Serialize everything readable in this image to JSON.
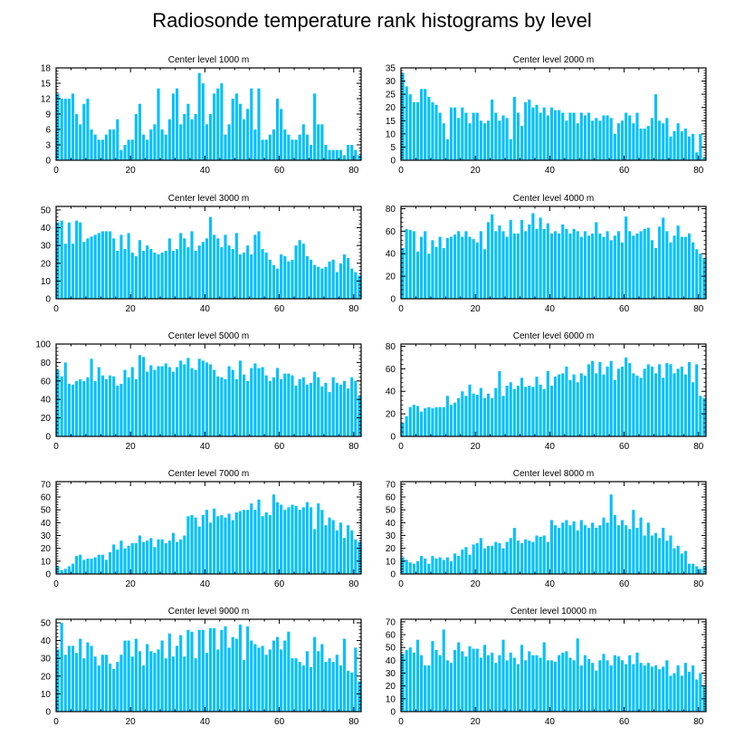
{
  "title": "Radiosonde temperature rank histograms by level",
  "colors": {
    "bar": "#00bfff",
    "axis": "#000000",
    "background": "#ffffff"
  },
  "chart_data": [
    {
      "type": "bar",
      "title": "Center level 1000 m",
      "xlabel": "",
      "ylabel": "",
      "xlim": [
        0,
        82
      ],
      "ylim": [
        0,
        18
      ],
      "xticks": [
        0,
        20,
        40,
        60,
        80
      ],
      "yticks": [
        0,
        3,
        6,
        9,
        12,
        15,
        18
      ],
      "values": [
        13,
        12,
        12,
        12,
        13,
        9,
        7,
        11,
        12,
        6,
        5,
        4,
        4,
        5,
        6,
        6,
        8,
        2,
        3,
        4,
        4,
        9,
        11,
        5,
        4,
        6,
        7,
        14,
        6,
        5,
        8,
        13,
        14,
        7,
        9,
        11,
        8,
        9,
        17,
        15,
        7,
        9,
        13,
        14,
        15,
        5,
        7,
        12,
        13,
        11,
        8,
        10,
        14,
        6,
        14,
        4,
        4,
        5,
        6,
        12,
        10,
        6,
        5,
        4,
        4,
        5,
        7,
        5,
        3,
        13,
        7,
        7,
        3,
        2,
        2,
        2,
        2,
        1,
        3,
        3,
        2,
        1
      ]
    },
    {
      "type": "bar",
      "title": "Center level 2000 m",
      "xlabel": "",
      "ylabel": "",
      "xlim": [
        0,
        82
      ],
      "ylim": [
        0,
        35
      ],
      "xticks": [
        0,
        20,
        40,
        60,
        80
      ],
      "yticks": [
        0,
        5,
        10,
        15,
        20,
        25,
        30,
        35
      ],
      "values": [
        33,
        28,
        25,
        22,
        22,
        27,
        27,
        24,
        22,
        21,
        18,
        14,
        8,
        20,
        20,
        16,
        20,
        18,
        14,
        18,
        18,
        15,
        14,
        15,
        23,
        18,
        15,
        17,
        16,
        8,
        24,
        18,
        13,
        22,
        23,
        20,
        21,
        18,
        20,
        17,
        20,
        19,
        19,
        18,
        15,
        18,
        18,
        14,
        18,
        17,
        18,
        15,
        16,
        15,
        17,
        17,
        16,
        10,
        14,
        15,
        18,
        17,
        14,
        18,
        12,
        12,
        13,
        16,
        25,
        15,
        14,
        16,
        9,
        11,
        14,
        11,
        12,
        9,
        10,
        3,
        10,
        1
      ]
    },
    {
      "type": "bar",
      "title": "Center level 3000 m",
      "xlabel": "",
      "ylabel": "",
      "xlim": [
        0,
        82
      ],
      "ylim": [
        0,
        52
      ],
      "xticks": [
        0,
        20,
        40,
        60,
        80
      ],
      "yticks": [
        0,
        10,
        20,
        30,
        40,
        50
      ],
      "values": [
        43,
        44,
        31,
        43,
        31,
        44,
        43,
        32,
        34,
        35,
        36,
        37,
        38,
        38,
        38,
        34,
        27,
        36,
        28,
        37,
        26,
        24,
        33,
        27,
        30,
        28,
        26,
        25,
        26,
        27,
        34,
        27,
        28,
        37,
        34,
        29,
        38,
        27,
        30,
        32,
        34,
        46,
        36,
        34,
        29,
        36,
        30,
        28,
        37,
        25,
        26,
        30,
        25,
        36,
        38,
        28,
        26,
        22,
        19,
        17,
        25,
        24,
        21,
        22,
        30,
        33,
        31,
        24,
        22,
        19,
        18,
        17,
        18,
        21,
        22,
        15,
        20,
        25,
        23,
        17,
        15,
        13
      ]
    },
    {
      "type": "bar",
      "title": "Center level 4000 m",
      "xlabel": "",
      "ylabel": "",
      "xlim": [
        0,
        82
      ],
      "ylim": [
        0,
        82
      ],
      "xticks": [
        0,
        20,
        40,
        60,
        80
      ],
      "yticks": [
        0,
        20,
        40,
        60,
        80
      ],
      "values": [
        45,
        62,
        61,
        60,
        42,
        55,
        60,
        40,
        52,
        46,
        55,
        45,
        54,
        55,
        57,
        60,
        55,
        60,
        55,
        53,
        50,
        60,
        44,
        68,
        75,
        60,
        65,
        60,
        55,
        70,
        58,
        58,
        70,
        60,
        66,
        76,
        62,
        72,
        62,
        67,
        58,
        60,
        58,
        66,
        62,
        58,
        62,
        60,
        55,
        60,
        56,
        58,
        68,
        58,
        55,
        60,
        52,
        56,
        60,
        50,
        73,
        60,
        56,
        58,
        60,
        62,
        63,
        52,
        45,
        64,
        72,
        60,
        50,
        56,
        65,
        55,
        55,
        58,
        50,
        44,
        40,
        36
      ]
    },
    {
      "type": "bar",
      "title": "Center level 5000 m",
      "xlabel": "",
      "ylabel": "",
      "xlim": [
        0,
        82
      ],
      "ylim": [
        0,
        100
      ],
      "xticks": [
        0,
        20,
        40,
        60,
        80
      ],
      "yticks": [
        0,
        20,
        40,
        60,
        80,
        100
      ],
      "values": [
        72,
        65,
        80,
        57,
        56,
        60,
        62,
        60,
        64,
        84,
        60,
        75,
        66,
        62,
        66,
        65,
        55,
        57,
        72,
        64,
        75,
        62,
        88,
        86,
        70,
        77,
        72,
        76,
        76,
        79,
        75,
        70,
        75,
        82,
        78,
        85,
        74,
        72,
        84,
        82,
        80,
        78,
        72,
        65,
        64,
        62,
        76,
        72,
        62,
        82,
        67,
        60,
        74,
        79,
        74,
        75,
        66,
        60,
        64,
        74,
        62,
        68,
        68,
        66,
        55,
        62,
        64,
        56,
        58,
        70,
        64,
        54,
        58,
        48,
        64,
        58,
        56,
        60,
        52,
        64,
        60,
        44
      ]
    },
    {
      "type": "bar",
      "title": "Center level 6000 m",
      "xlabel": "",
      "ylabel": "",
      "xlim": [
        0,
        82
      ],
      "ylim": [
        0,
        82
      ],
      "xticks": [
        0,
        20,
        40,
        60,
        80
      ],
      "yticks": [
        0,
        20,
        40,
        60,
        80
      ],
      "values": [
        12,
        18,
        26,
        28,
        27,
        22,
        25,
        26,
        25,
        26,
        26,
        26,
        36,
        28,
        30,
        34,
        40,
        36,
        46,
        38,
        37,
        43,
        34,
        38,
        34,
        43,
        58,
        36,
        45,
        48,
        42,
        45,
        52,
        44,
        45,
        44,
        53,
        46,
        42,
        58,
        45,
        53,
        55,
        56,
        62,
        50,
        55,
        48,
        56,
        54,
        64,
        67,
        56,
        66,
        55,
        62,
        67,
        50,
        60,
        62,
        70,
        65,
        56,
        54,
        52,
        60,
        64,
        62,
        56,
        64,
        52,
        65,
        64,
        56,
        60,
        62,
        55,
        66,
        48,
        64,
        36,
        34
      ]
    },
    {
      "type": "bar",
      "title": "Center level 7000 m",
      "xlabel": "",
      "ylabel": "",
      "xlim": [
        0,
        82
      ],
      "ylim": [
        0,
        72
      ],
      "xticks": [
        0,
        20,
        40,
        60,
        80
      ],
      "yticks": [
        0,
        10,
        20,
        30,
        40,
        50,
        60,
        70
      ],
      "values": [
        6,
        3,
        4,
        6,
        8,
        14,
        15,
        11,
        12,
        12,
        13,
        15,
        15,
        11,
        17,
        23,
        19,
        26,
        20,
        22,
        24,
        24,
        30,
        25,
        26,
        28,
        21,
        27,
        27,
        24,
        26,
        32,
        25,
        27,
        30,
        45,
        46,
        44,
        37,
        46,
        50,
        40,
        51,
        45,
        46,
        44,
        47,
        42,
        48,
        49,
        50,
        50,
        55,
        50,
        58,
        45,
        48,
        46,
        62,
        56,
        54,
        50,
        52,
        54,
        53,
        50,
        52,
        56,
        52,
        35,
        55,
        50,
        38,
        44,
        42,
        34,
        40,
        28,
        38,
        34,
        27,
        25
      ]
    },
    {
      "type": "bar",
      "title": "Center level 8000 m",
      "xlabel": "",
      "ylabel": "",
      "xlim": [
        0,
        82
      ],
      "ylim": [
        0,
        72
      ],
      "xticks": [
        0,
        20,
        40,
        60,
        80
      ],
      "yticks": [
        0,
        10,
        20,
        30,
        40,
        50,
        60,
        70
      ],
      "values": [
        13,
        11,
        9,
        8,
        10,
        14,
        12,
        8,
        14,
        12,
        13,
        11,
        13,
        10,
        16,
        14,
        19,
        21,
        15,
        23,
        24,
        28,
        20,
        22,
        22,
        25,
        24,
        20,
        25,
        28,
        36,
        26,
        24,
        27,
        26,
        25,
        30,
        29,
        30,
        25,
        42,
        38,
        36,
        40,
        42,
        38,
        41,
        34,
        42,
        38,
        36,
        40,
        36,
        38,
        44,
        40,
        62,
        46,
        38,
        42,
        38,
        35,
        50,
        36,
        44,
        30,
        40,
        30,
        32,
        28,
        36,
        26,
        30,
        20,
        22,
        16,
        18,
        8,
        8,
        6,
        4,
        6
      ]
    },
    {
      "type": "bar",
      "title": "Center level 9000 m",
      "xlabel": "",
      "ylabel": "",
      "xlim": [
        0,
        82
      ],
      "ylim": [
        0,
        52
      ],
      "xticks": [
        0,
        20,
        40,
        60,
        80
      ],
      "yticks": [
        0,
        10,
        20,
        30,
        40,
        50
      ],
      "values": [
        35,
        50,
        32,
        37,
        37,
        33,
        41,
        30,
        39,
        37,
        31,
        26,
        32,
        32,
        27,
        24,
        28,
        32,
        40,
        40,
        31,
        41,
        34,
        26,
        38,
        34,
        33,
        35,
        40,
        30,
        44,
        31,
        37,
        43,
        31,
        46,
        45,
        30,
        46,
        46,
        33,
        47,
        47,
        35,
        46,
        48,
        36,
        42,
        41,
        49,
        29,
        48,
        40,
        38,
        36,
        37,
        32,
        35,
        40,
        42,
        35,
        40,
        45,
        30,
        30,
        28,
        26,
        34,
        25,
        42,
        34,
        38,
        28,
        30,
        28,
        32,
        26,
        41,
        23,
        22,
        36,
        17
      ]
    },
    {
      "type": "bar",
      "title": "Center level 10000 m",
      "xlabel": "",
      "ylabel": "",
      "xlim": [
        0,
        82
      ],
      "ylim": [
        0,
        72
      ],
      "xticks": [
        0,
        20,
        40,
        60,
        80
      ],
      "yticks": [
        0,
        10,
        20,
        30,
        40,
        50,
        60,
        70
      ],
      "values": [
        45,
        48,
        50,
        46,
        56,
        44,
        36,
        36,
        55,
        48,
        44,
        64,
        40,
        38,
        48,
        54,
        47,
        43,
        51,
        49,
        49,
        42,
        52,
        44,
        46,
        38,
        44,
        56,
        40,
        46,
        42,
        37,
        52,
        40,
        47,
        44,
        44,
        42,
        54,
        40,
        40,
        39,
        44,
        46,
        47,
        42,
        40,
        57,
        36,
        44,
        41,
        38,
        32,
        40,
        45,
        40,
        36,
        44,
        43,
        40,
        37,
        44,
        37,
        46,
        38,
        36,
        38,
        35,
        36,
        33,
        35,
        40,
        28,
        30,
        36,
        28,
        38,
        31,
        36,
        25,
        30,
        20
      ]
    }
  ]
}
